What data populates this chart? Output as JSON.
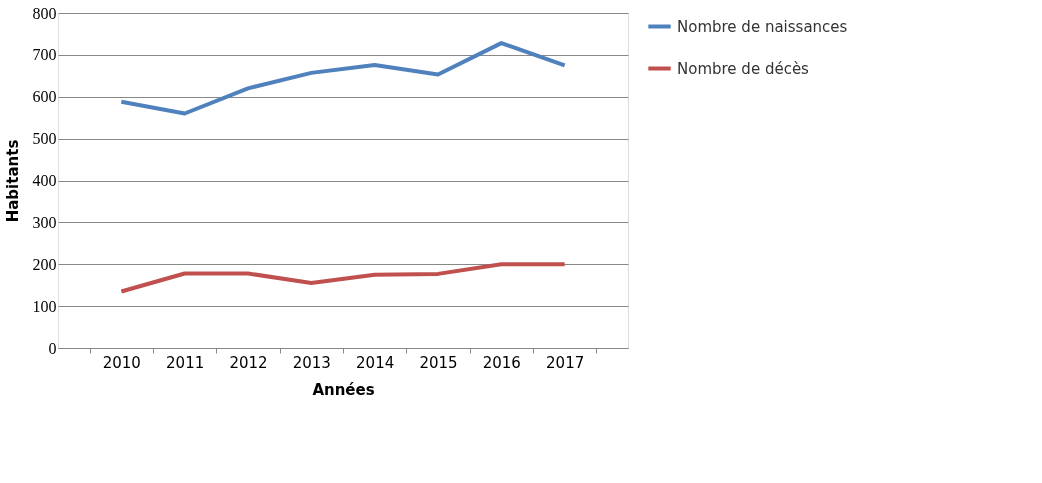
{
  "chart_data": {
    "type": "line",
    "xlabel": "Années",
    "ylabel": "Habitants",
    "categories": [
      "2010",
      "2011",
      "2012",
      "2013",
      "2014",
      "2015",
      "2016",
      "2017"
    ],
    "series": [
      {
        "name": "Nombre de naissances",
        "color": "#4f81bd",
        "values": [
          588,
          560,
          620,
          657,
          676,
          653,
          728,
          675
        ]
      },
      {
        "name": "Nombre de décès",
        "color": "#c0504d",
        "values": [
          135,
          178,
          178,
          155,
          175,
          177,
          200,
          200
        ]
      }
    ],
    "ylim": [
      0,
      800
    ],
    "yticks": [
      0,
      100,
      200,
      300,
      400,
      500,
      600,
      700,
      800
    ],
    "grid": "y",
    "legend": "right",
    "marker": "none",
    "line_style": "solid"
  }
}
